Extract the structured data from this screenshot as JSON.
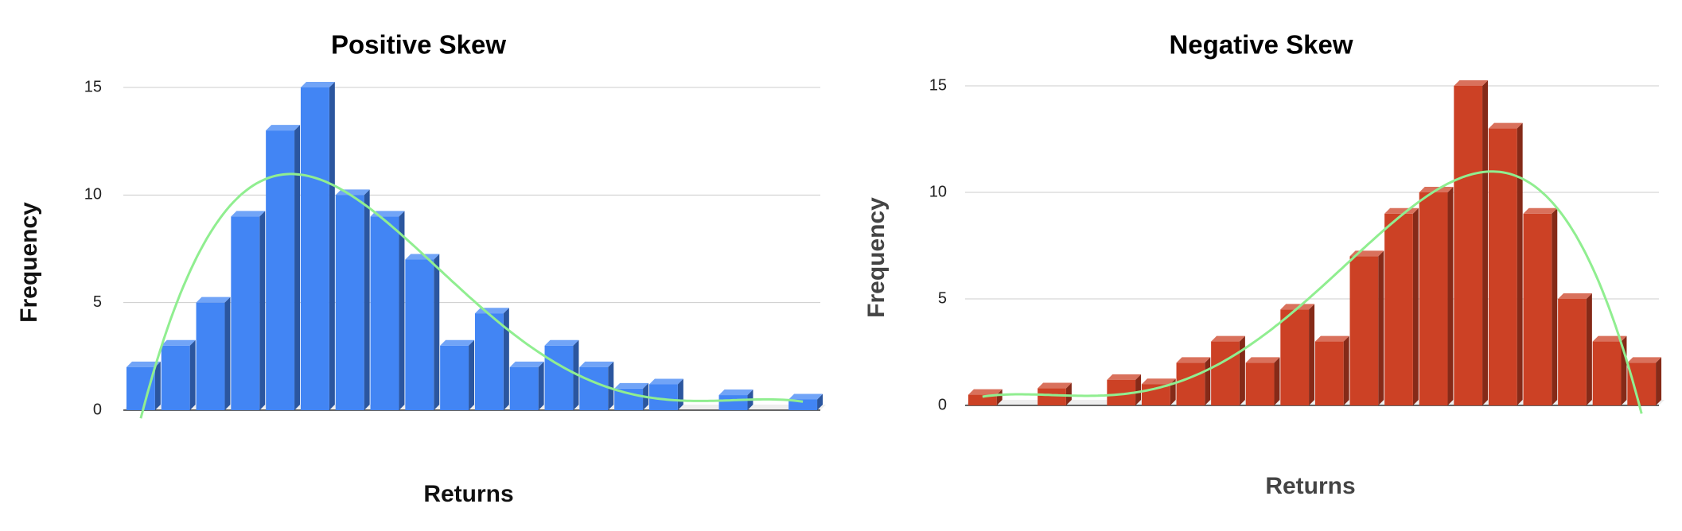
{
  "chart_data": [
    {
      "type": "bar",
      "title": "Positive Skew",
      "x_label": "Returns",
      "y_label": "Frequency",
      "categories": [
        null,
        null,
        null,
        null,
        null,
        null,
        null,
        null,
        null,
        null,
        null,
        null,
        null,
        null,
        null,
        null,
        null,
        null,
        null,
        null
      ],
      "values": [
        2,
        3,
        5,
        9,
        13,
        15,
        10,
        9,
        7,
        3,
        4.5,
        2,
        3,
        2,
        1,
        1.2,
        0,
        0.7,
        0,
        0.5
      ],
      "color": "#4285f4",
      "ylim": [
        0,
        15
      ],
      "yticks": [
        0,
        5,
        10,
        15
      ],
      "grid": true,
      "trendline": {
        "type": "polynomial",
        "degree": 4,
        "color": "#90ee90"
      }
    },
    {
      "type": "bar",
      "title": "Negative Skew",
      "x_label": "Returns",
      "y_label": "Frequency",
      "categories": [
        null,
        null,
        null,
        null,
        null,
        null,
        null,
        null,
        null,
        null,
        null,
        null,
        null,
        null,
        null,
        null,
        null,
        null,
        null,
        null
      ],
      "values": [
        0.5,
        0,
        0.8,
        0,
        1.2,
        1,
        2,
        3,
        2,
        4.5,
        3,
        7,
        9,
        10,
        15,
        13,
        9,
        5,
        3,
        2
      ],
      "color": "#cc4125",
      "ylim": [
        0,
        15
      ],
      "yticks": [
        0,
        5,
        10,
        15
      ],
      "grid": true,
      "trendline": {
        "type": "polynomial",
        "degree": 4,
        "color": "#90ee90"
      }
    }
  ]
}
